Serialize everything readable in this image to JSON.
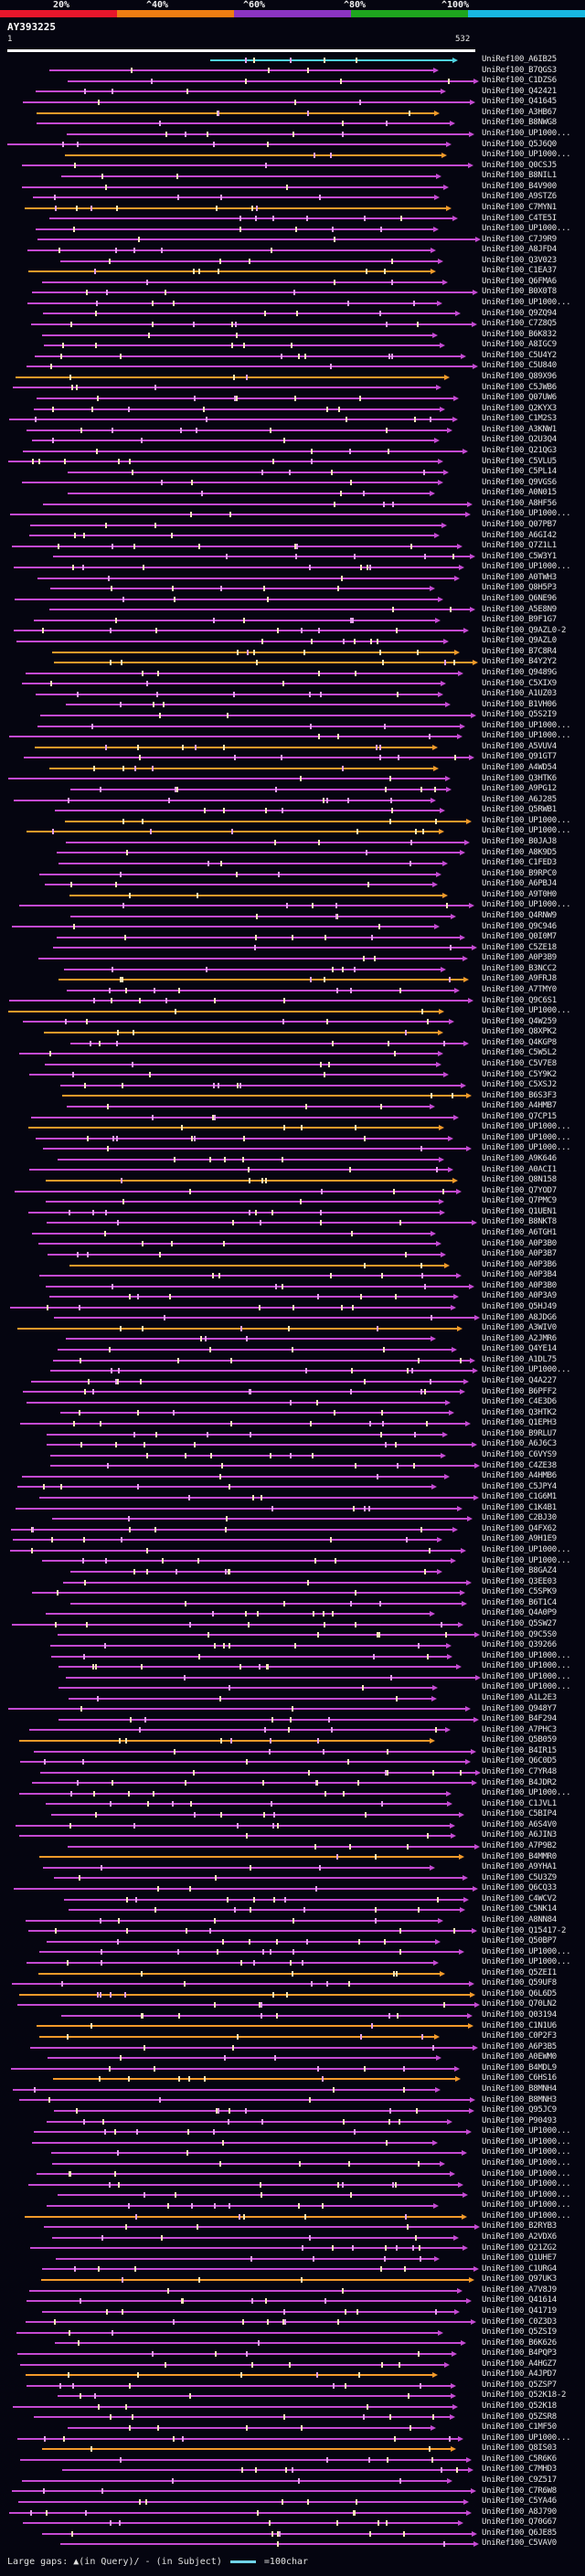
{
  "legend": {
    "ticks": [
      "20%",
      "^40%",
      "^60%",
      "^80%",
      "^100%"
    ],
    "colors": [
      "#e8162b",
      "#ef7d12",
      "#8c34c2",
      "#1ea61e",
      "#18b8e0"
    ]
  },
  "query": {
    "id": "AY393225",
    "start": "1",
    "end": "532"
  },
  "hits": [
    "UniRef100_A6IB25",
    "UniRef100_B7QGS3",
    "UniRef100_C1DZS6",
    "UniRef100_Q42421",
    "UniRef100_Q41645",
    "UniRef100_A3HB67",
    "UniRef100_B8NWG8",
    "UniRef100_UP1000...",
    "UniRef100_Q5J6Q0",
    "UniRef100_UP1000...",
    "UniRef100_Q0CSJ5",
    "UniRef100_B8NIL1",
    "UniRef100_B4V900",
    "UniRef100_A9STZ6",
    "UniRef100_C7MYN1",
    "UniRef100_C4TE5I",
    "UniRef100_UP1000...",
    "UniRef100_C7J9R9",
    "UniRef100_A8JFD4",
    "UniRef100_Q3V023",
    "UniRef100_C1EA37",
    "UniRef100_Q6FMA6",
    "UniRef100_B0X0T8",
    "UniRef100_UP1000...",
    "UniRef100_Q9ZQ94",
    "UniRef100_C7Z8Q5",
    "UniRef100_B6K832",
    "UniRef100_A8IGC9",
    "UniRef100_C5U4Y2",
    "UniRef100_C5U840",
    "UniRef100_Q89X96",
    "UniRef100_C5JWB6",
    "UniRef100_Q07UW6",
    "UniRef100_Q2KYX3",
    "UniRef100_C1M2S3",
    "UniRef100_A3KNW1",
    "UniRef100_Q2U3Q4",
    "UniRef100_Q21QG3",
    "UniRef100_C5VLU5",
    "UniRef100_C5PL14",
    "UniRef100_Q9VGS6",
    "UniRef100_A0N015",
    "UniRef100_A8HF56",
    "UniRef100_UP1000...",
    "UniRef100_Q07PB7",
    "UniRef100_A6GI42",
    "UniRef100_Q7Z1L1",
    "UniRef100_C5W3Y1",
    "UniRef100_UP1000...",
    "UniRef100_A0TWH3",
    "UniRef100_Q8H5P3",
    "UniRef100_Q6NE96",
    "UniRef100_A5E8N9",
    "UniRef100_B9F1G7",
    "UniRef100_Q9AZL0-2",
    "UniRef100_Q9AZL0",
    "UniRef100_B7C8R4",
    "UniRef100_B4Y2Y2",
    "UniRef100_Q9489G",
    "UniRef100_C5XIX9",
    "UniRef100_A1UZ03",
    "UniRef100_B1VH06",
    "UniRef100_Q5S2I9",
    "UniRef100_UP1000...",
    "UniRef100_UP1000...",
    "UniRef100_A5VUV4",
    "UniRef100_Q91GT7",
    "UniRef100_A4WD54",
    "UniRef100_Q3HTK6",
    "UniRef100_A9PG12",
    "UniRef100_A6J285",
    "UniRef100_Q5RWB1",
    "UniRef100_UP1000...",
    "UniRef100_UP1000...",
    "UniRef100_B0JAJ8",
    "UniRef100_A8K9D5",
    "UniRef100_C1FED3",
    "UniRef100_B9RPC0",
    "UniRef100_A6PBJ4",
    "UniRef100_A9T0H0",
    "UniRef100_UP1000...",
    "UniRef100_Q4RNW9",
    "UniRef100_Q9C946",
    "UniRef100_Q0I0M7",
    "UniRef100_C5ZE18",
    "UniRef100_A0P3B9",
    "UniRef100_B3NCC2",
    "UniRef100_A9FRJ8",
    "UniRef100_A7TMY0",
    "UniRef100_Q9C6S1",
    "UniRef100_UP1000...",
    "UniRef100_Q4W259",
    "UniRef100_Q8XPK2",
    "UniRef100_Q4KGP8",
    "UniRef100_C5W5L2",
    "UniRef100_C5V7E8",
    "UniRef100_C5Y9K2",
    "UniRef100_C5XSJ2",
    "UniRef100_B6S3F3",
    "UniRef100_A4HMB7",
    "UniRef100_Q7CP15",
    "UniRef100_UP1000...",
    "UniRef100_UP1000...",
    "UniRef100_UP1000...",
    "UniRef100_A9K646",
    "UniRef100_A0ACI1",
    "UniRef100_Q8N158",
    "UniRef100_Q7YOD7",
    "UniRef100_Q7PMC9",
    "UniRef100_Q1UEN1",
    "UniRef100_B8NKT8",
    "UniRef100_A6TGH1",
    "UniRef100_A0P3B0",
    "UniRef100_A0P3B7",
    "UniRef100_A0P3B6",
    "UniRef100_A0P3B4",
    "UniRef100_A0P3B0",
    "UniRef100_A0P3A9",
    "UniRef100_Q5HJ49",
    "UniRef100_A8JDG6",
    "UniRef100_A3WIV0",
    "UniRef100_A2JMR6",
    "UniRef100_Q4YE14",
    "UniRef100_A1DL75",
    "UniRef100_UP1000...",
    "UniRef100_Q4A227",
    "UniRef100_B6PFF2",
    "UniRef100_C4E3D6",
    "UniRef100_Q3HTK2",
    "UniRef100_Q1EPH3",
    "UniRef100_B9RLU7",
    "UniRef100_A6J6C3",
    "UniRef100_C6VYS9",
    "UniRef100_C4ZE38",
    "UniRef100_A4HMB6",
    "UniRef100_C5JPY4",
    "UniRef100_C1G6M1",
    "UniRef100_C1K4B1",
    "UniRef100_C2BJ30",
    "UniRef100_Q4FX62",
    "UniRef100_A9H1E9",
    "UniRef100_UP1000...",
    "UniRef100_UP1000...",
    "UniRef100_B8GAZ4",
    "UniRef100_Q3EE03",
    "UniRef100_C5SPK9",
    "UniRef100_B6T1C4",
    "UniRef100_Q4A0P9",
    "UniRef100_Q5SW27",
    "UniRef100_Q9C5S0",
    "UniRef100_Q39266",
    "UniRef100_UP1000...",
    "UniRef100_UP1000...",
    "UniRef100_UP1000...",
    "UniRef100_UP1000...",
    "UniRef100_A1L2E3",
    "UniRef100_Q948Y7",
    "UniRef100_B4F294",
    "UniRef100_A7PHC3",
    "UniRef100_Q5B059",
    "UniRef100_B4IR15",
    "UniRef100_Q6C0D5",
    "UniRef100_C7YR48",
    "UniRef100_B4JDR2",
    "UniRef100_UP1000...",
    "UniRef100_C1JVL1",
    "UniRef100_C5BIP4",
    "UniRef100_A6S4V0",
    "UniRef100_A6JIN3",
    "UniRef100_A7P9B2",
    "UniRef100_B4MMR0",
    "UniRef100_A9YHA1",
    "UniRef100_C5U3Z9",
    "UniRef100_Q6CQ33",
    "UniRef100_C4WCV2",
    "UniRef100_C5NK14",
    "UniRef100_A8NN84",
    "UniRef100_Q15417-2",
    "UniRef100_Q50BP7",
    "UniRef100_UP1000...",
    "UniRef100_UP1000...",
    "UniRef100_Q5ZEI1",
    "UniRef100_Q59UF8",
    "UniRef100_Q6L6D5",
    "UniRef100_Q70LN2",
    "UniRef100_Q03194",
    "UniRef100_C1N1U6",
    "UniRef100_C0P2F3",
    "UniRef100_A6P3B5",
    "UniRef100_A0EWM0",
    "UniRef100_B4MDL9",
    "UniRef100_C6HS16",
    "UniRef100_B8MNH4",
    "UniRef100_B8MNH3",
    "UniRef100_Q95JC9",
    "UniRef100_P90493",
    "UniRef100_UP1000...",
    "UniRef100_UP1000...",
    "UniRef100_UP1000...",
    "UniRef100_UP1000...",
    "UniRef100_UP1000...",
    "UniRef100_UP1000...",
    "UniRef100_UP1000...",
    "UniRef100_UP1000...",
    "UniRef100_UP1000...",
    "UniRef100_B2RYB3",
    "UniRef100_A2VDX6",
    "UniRef100_Q21ZG2",
    "UniRef100_Q1UHE7",
    "UniRef100_C1URG4",
    "UniRef100_Q97UK3",
    "UniRef100_A7V8J9",
    "UniRef100_Q41614",
    "UniRef100_Q41719",
    "UniRef100_C0Z3D3",
    "UniRef100_Q5ZSI9",
    "UniRef100_B6K626",
    "UniRef100_B4PQP3",
    "UniRef100_A4HGZ7",
    "UniRef100_A4JPD7",
    "UniRef100_Q5ZSP7",
    "UniRef100_Q52K18-2",
    "UniRef100_Q52K18",
    "UniRef100_Q5ZSR8",
    "UniRef100_C1MF50",
    "UniRef100_UP1000...",
    "UniRef100_Q8IS03",
    "UniRef100_C5R6K6",
    "UniRef100_C7MHD3",
    "UniRef100_C9Z517",
    "UniRef100_C7R6W8",
    "UniRef100_C5YA46",
    "UniRef100_A8J790",
    "UniRef100_Q70G67",
    "UniRef100_Q6JE85",
    "UniRef100_C5VAV0"
  ],
  "footer": {
    "prefix": "Large gaps:",
    "query_gap": "▲(in Query)/",
    "subject_gap": "- (in Subject)",
    "scale": "=100char"
  }
}
